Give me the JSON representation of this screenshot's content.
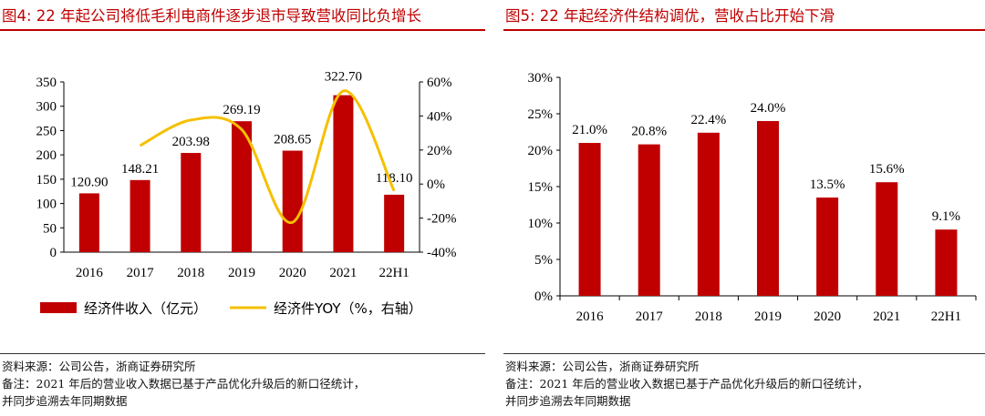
{
  "chart4": {
    "title": "图4:   22 年起公司将低毛利电商件逐步退市导致营收同比负增长",
    "notes": [
      "资料来源：公司公告，浙商证券研究所",
      "备注：2021 年后的营业收入数据已基于产品优化升级后的新口径统计，",
      "并同步追溯去年同期数据"
    ]
  },
  "chart5": {
    "title": "图5:   22 年起经济件结构调优，营收占比开始下滑",
    "notes": [
      "资料来源：公司公告，浙商证券研究所",
      "备注：2021 年后的营业收入数据已基于产品优化升级后的新口径统计，",
      "并同步追溯去年同期数据"
    ]
  },
  "chart_data": [
    {
      "type": "bar",
      "title": "22 年起公司将低毛利电商件逐步退市导致营收同比负增长",
      "categories": [
        "2016",
        "2017",
        "2018",
        "2019",
        "2020",
        "2021",
        "22H1"
      ],
      "series": [
        {
          "name": "经济件收入（亿元）",
          "type": "bar",
          "axis": "left",
          "color": "#c00000",
          "values": [
            120.9,
            148.21,
            203.98,
            269.19,
            208.65,
            322.7,
            118.1
          ],
          "labels": [
            "120.90",
            "148.21",
            "203.98",
            "269.19",
            "208.65",
            "322.70",
            "118.10"
          ]
        },
        {
          "name": "经济件YOY（%，右轴）",
          "type": "line",
          "axis": "right",
          "color": "#f5c000",
          "values": [
            null,
            22.6,
            37.6,
            32.0,
            -22.5,
            54.7,
            -4.0
          ]
        }
      ],
      "yticks_left": [
        "0",
        "50",
        "100",
        "150",
        "200",
        "250",
        "300",
        "350"
      ],
      "yticks_right": [
        "-40%",
        "-20%",
        "0%",
        "20%",
        "40%",
        "60%"
      ],
      "ylim_left": [
        0,
        350
      ],
      "ylim_right": [
        -40,
        60
      ],
      "legend_position": "bottom"
    },
    {
      "type": "bar",
      "title": "22 年起经济件结构调优，营收占比开始下滑",
      "categories": [
        "2016",
        "2017",
        "2018",
        "2019",
        "2020",
        "2021",
        "22H1"
      ],
      "series": [
        {
          "name": "营收占比",
          "type": "bar",
          "color": "#c00000",
          "values": [
            21.0,
            20.8,
            22.4,
            24.0,
            13.5,
            15.6,
            9.1
          ],
          "labels": [
            "21.0%",
            "20.8%",
            "22.4%",
            "24.0%",
            "13.5%",
            "15.6%",
            "9.1%"
          ]
        }
      ],
      "yticks": [
        "0%",
        "5%",
        "10%",
        "15%",
        "20%",
        "25%",
        "30%"
      ],
      "ylim": [
        0,
        30
      ]
    }
  ]
}
